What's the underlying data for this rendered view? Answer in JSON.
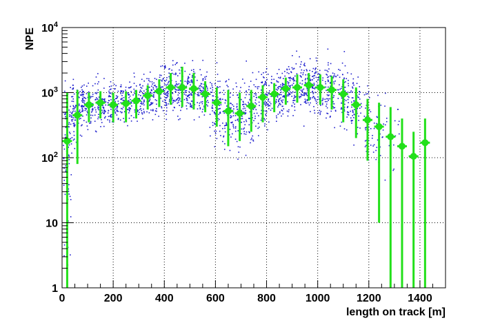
{
  "chart_data": {
    "type": "scatter",
    "title": "",
    "xlabel": "length on track [m]",
    "ylabel": "NPE",
    "xlim": [
      0,
      1500
    ],
    "ylim": [
      1,
      10000
    ],
    "yscale": "log",
    "grid": true,
    "x_ticks": [
      {
        "value": 0,
        "label": "0"
      },
      {
        "value": 200,
        "label": "200"
      },
      {
        "value": 400,
        "label": "400"
      },
      {
        "value": 600,
        "label": "600"
      },
      {
        "value": 800,
        "label": "800"
      },
      {
        "value": 1000,
        "label": "1000"
      },
      {
        "value": 1200,
        "label": "1200"
      },
      {
        "value": 1400,
        "label": "1400"
      }
    ],
    "y_ticks": [
      {
        "value": 1,
        "label": "1"
      },
      {
        "value": 10,
        "label": "10"
      },
      {
        "value": 100,
        "label": "10",
        "exp": "2"
      },
      {
        "value": 1000,
        "label": "10",
        "exp": "3"
      },
      {
        "value": 10000,
        "label": "10",
        "exp": "4"
      }
    ],
    "series": [
      {
        "kind": "scatter",
        "color": "#1a1acc",
        "points_description_bins": [
          {
            "x": 15,
            "center": 40,
            "spread": 1.3,
            "n": 60
          },
          {
            "x": 30,
            "center": 400,
            "spread": 0.45,
            "n": 60
          },
          {
            "x": 60,
            "center": 550,
            "spread": 0.35,
            "n": 70
          },
          {
            "x": 100,
            "center": 650,
            "spread": 0.3,
            "n": 80
          },
          {
            "x": 150,
            "center": 650,
            "spread": 0.3,
            "n": 80
          },
          {
            "x": 200,
            "center": 650,
            "spread": 0.3,
            "n": 80
          },
          {
            "x": 250,
            "center": 650,
            "spread": 0.3,
            "n": 80
          },
          {
            "x": 300,
            "center": 750,
            "spread": 0.3,
            "n": 80
          },
          {
            "x": 350,
            "center": 900,
            "spread": 0.3,
            "n": 80
          },
          {
            "x": 400,
            "center": 1050,
            "spread": 0.35,
            "n": 90
          },
          {
            "x": 450,
            "center": 1200,
            "spread": 0.35,
            "n": 90
          },
          {
            "x": 500,
            "center": 1150,
            "spread": 0.35,
            "n": 90
          },
          {
            "x": 550,
            "center": 1000,
            "spread": 0.35,
            "n": 80
          },
          {
            "x": 600,
            "center": 650,
            "spread": 0.45,
            "n": 80
          },
          {
            "x": 650,
            "center": 500,
            "spread": 0.5,
            "n": 80
          },
          {
            "x": 700,
            "center": 480,
            "spread": 0.5,
            "n": 80
          },
          {
            "x": 750,
            "center": 620,
            "spread": 0.45,
            "n": 80
          },
          {
            "x": 800,
            "center": 850,
            "spread": 0.4,
            "n": 80
          },
          {
            "x": 850,
            "center": 950,
            "spread": 0.35,
            "n": 90
          },
          {
            "x": 900,
            "center": 1150,
            "spread": 0.35,
            "n": 90
          },
          {
            "x": 950,
            "center": 1250,
            "spread": 0.35,
            "n": 90
          },
          {
            "x": 1000,
            "center": 1200,
            "spread": 0.35,
            "n": 90
          },
          {
            "x": 1050,
            "center": 1100,
            "spread": 0.4,
            "n": 80
          },
          {
            "x": 1100,
            "center": 900,
            "spread": 0.45,
            "n": 70
          },
          {
            "x": 1150,
            "center": 600,
            "spread": 0.5,
            "n": 60
          },
          {
            "x": 1200,
            "center": 380,
            "spread": 0.55,
            "n": 40
          },
          {
            "x": 1250,
            "center": 300,
            "spread": 0.6,
            "n": 25
          },
          {
            "x": 1300,
            "center": 200,
            "spread": 0.6,
            "n": 12
          }
        ]
      },
      {
        "kind": "profile",
        "color": "#22e01a",
        "points": [
          {
            "x": 20,
            "y": 180,
            "lo": 1,
            "hi": 1000
          },
          {
            "x": 60,
            "y": 450,
            "lo": 80,
            "hi": 1100
          },
          {
            "x": 105,
            "y": 650,
            "lo": 350,
            "hi": 1000
          },
          {
            "x": 150,
            "y": 700,
            "lo": 400,
            "hi": 1050
          },
          {
            "x": 200,
            "y": 650,
            "lo": 350,
            "hi": 1000
          },
          {
            "x": 250,
            "y": 680,
            "lo": 350,
            "hi": 1050
          },
          {
            "x": 290,
            "y": 750,
            "lo": 400,
            "hi": 1100
          },
          {
            "x": 335,
            "y": 900,
            "lo": 550,
            "hi": 1300
          },
          {
            "x": 380,
            "y": 1050,
            "lo": 600,
            "hi": 1600
          },
          {
            "x": 425,
            "y": 1200,
            "lo": 650,
            "hi": 2000
          },
          {
            "x": 470,
            "y": 1200,
            "lo": 600,
            "hi": 2500
          },
          {
            "x": 515,
            "y": 1150,
            "lo": 550,
            "hi": 2000
          },
          {
            "x": 560,
            "y": 950,
            "lo": 500,
            "hi": 1500
          },
          {
            "x": 605,
            "y": 700,
            "lo": 300,
            "hi": 1200
          },
          {
            "x": 650,
            "y": 520,
            "lo": 150,
            "hi": 1100
          },
          {
            "x": 695,
            "y": 480,
            "lo": 180,
            "hi": 1000
          },
          {
            "x": 740,
            "y": 620,
            "lo": 250,
            "hi": 1100
          },
          {
            "x": 785,
            "y": 850,
            "lo": 350,
            "hi": 1300
          },
          {
            "x": 830,
            "y": 950,
            "lo": 500,
            "hi": 1400
          },
          {
            "x": 875,
            "y": 1150,
            "lo": 650,
            "hi": 1700
          },
          {
            "x": 920,
            "y": 1200,
            "lo": 700,
            "hi": 1900
          },
          {
            "x": 965,
            "y": 1300,
            "lo": 750,
            "hi": 2000
          },
          {
            "x": 1010,
            "y": 1200,
            "lo": 650,
            "hi": 1900
          },
          {
            "x": 1055,
            "y": 1100,
            "lo": 550,
            "hi": 1800
          },
          {
            "x": 1100,
            "y": 950,
            "lo": 350,
            "hi": 1600
          },
          {
            "x": 1150,
            "y": 650,
            "lo": 200,
            "hi": 1200
          },
          {
            "x": 1195,
            "y": 380,
            "lo": 90,
            "hi": 800
          },
          {
            "x": 1240,
            "y": 300,
            "lo": 10,
            "hi": 700
          },
          {
            "x": 1285,
            "y": 210,
            "lo": 1,
            "hi": 600
          },
          {
            "x": 1330,
            "y": 150,
            "lo": 1,
            "hi": 400
          },
          {
            "x": 1375,
            "y": 105,
            "lo": 1,
            "hi": 250
          },
          {
            "x": 1420,
            "y": 170,
            "lo": 1,
            "hi": 400
          }
        ]
      }
    ]
  }
}
